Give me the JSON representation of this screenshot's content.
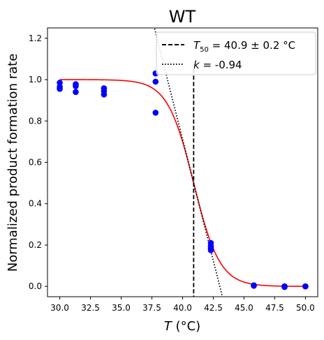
{
  "chart_data": {
    "type": "scatter",
    "title": "WT",
    "xlabel": "T (°C)",
    "xlabel_italic": "T",
    "xlabel_rest": " (°C)",
    "ylabel": "Normalized product formation rate",
    "xlim": [
      29.0,
      51.0
    ],
    "ylim": [
      -0.05,
      1.25
    ],
    "xticks": [
      30.0,
      32.5,
      35.0,
      37.5,
      40.0,
      42.5,
      45.0,
      47.5,
      50.0
    ],
    "xtick_labels": [
      "30.0",
      "32.5",
      "35.0",
      "37.5",
      "40.0",
      "42.5",
      "45.0",
      "47.5",
      "50.0"
    ],
    "yticks": [
      0.0,
      0.2,
      0.4,
      0.6,
      0.8,
      1.0,
      1.2
    ],
    "ytick_labels": [
      "0.0",
      "0.2",
      "0.4",
      "0.6",
      "0.8",
      "1.0",
      "1.2"
    ],
    "grid": false,
    "legend_position": "top-right",
    "colors": {
      "points": "#0000ff",
      "fit": "#ff0000",
      "t50_line": "#000000",
      "slope_line": "#000000"
    },
    "series": [
      {
        "kind": "points",
        "x": [
          30.0,
          30.0,
          30.0,
          31.3,
          31.3,
          31.3,
          33.6,
          33.6,
          33.6,
          37.8,
          37.8,
          37.8,
          42.3,
          42.3,
          42.3,
          42.3,
          45.8,
          45.8,
          48.3,
          48.3,
          48.3,
          50.0,
          50.0
        ],
        "y": [
          0.985,
          0.965,
          0.955,
          0.978,
          0.968,
          0.94,
          0.958,
          0.945,
          0.928,
          1.03,
          0.99,
          0.84,
          0.21,
          0.195,
          0.185,
          0.175,
          0.005,
          0.003,
          0.0,
          0.0,
          -0.003,
          0.0,
          0.0
        ]
      },
      {
        "kind": "fit",
        "function": "sigmoid",
        "midpoint": 40.9,
        "slope": -0.94,
        "x_range": [
          30.0,
          50.0
        ]
      },
      {
        "kind": "vline",
        "name": "T50 = 40.9 ± 0.2 °C",
        "x": 40.9,
        "y_range": [
          -0.05,
          1.05
        ]
      },
      {
        "kind": "tangent",
        "name": "k = -0.94",
        "x0": 40.9,
        "y0": 0.5,
        "slope": -0.235
      }
    ],
    "legend": [
      {
        "symbol": "T",
        "subscript": "50",
        "text": " = 40.9 ± 0.2 °C",
        "style": "dashed"
      },
      {
        "symbol": "k",
        "subscript": "",
        "text": " = -0.94",
        "style": "dotted"
      }
    ]
  }
}
